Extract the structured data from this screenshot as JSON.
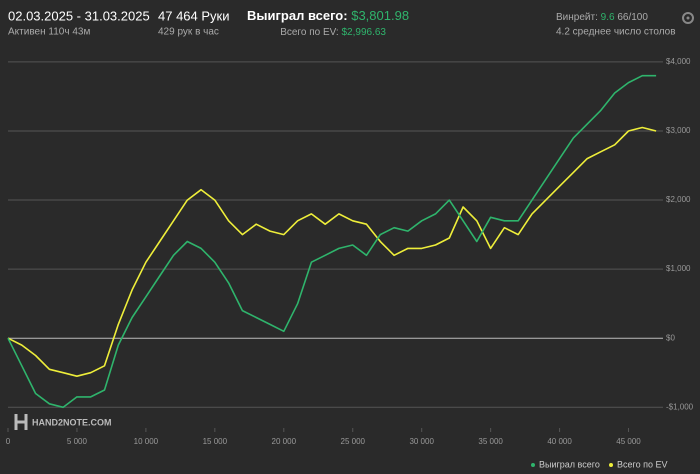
{
  "header": {
    "period": "02.03.2025 - 31.03.2025",
    "active": "Активен 110ч 43м",
    "hands": "47 464 Руки",
    "rate": "429 рук в час",
    "won_label": "Выиграл всего:",
    "won_value": "$3,801.98",
    "ev_label": "Всего по EV:",
    "ev_value": "$2,996.63",
    "winrate_label": "Винрейт:",
    "winrate_value": "9.6",
    "winrate_sample": "66/100",
    "tables": "4.2 среднее число столов",
    "watermark": "HAND2NOTE.COM"
  },
  "chart_data": {
    "type": "line",
    "x": [
      0,
      1000,
      2000,
      3000,
      4000,
      5000,
      6000,
      7000,
      8000,
      9000,
      10000,
      11000,
      12000,
      13000,
      14000,
      15000,
      16000,
      17000,
      18000,
      19000,
      20000,
      21000,
      22000,
      23000,
      24000,
      25000,
      26000,
      27000,
      28000,
      29000,
      30000,
      31000,
      32000,
      33000,
      34000,
      35000,
      36000,
      37000,
      38000,
      39000,
      40000,
      41000,
      42000,
      43000,
      44000,
      45000,
      46000,
      47000
    ],
    "series": [
      {
        "name": "Выиграл всего",
        "color": "#2fb46c",
        "values": [
          0,
          -400,
          -800,
          -950,
          -1000,
          -850,
          -850,
          -750,
          -100,
          300,
          600,
          900,
          1200,
          1400,
          1300,
          1100,
          800,
          400,
          300,
          200,
          100,
          500,
          1100,
          1200,
          1300,
          1350,
          1200,
          1500,
          1600,
          1550,
          1700,
          1800,
          2000,
          1700,
          1400,
          1750,
          1700,
          1700,
          2000,
          2300,
          2600,
          2900,
          3100,
          3300,
          3550,
          3700,
          3800,
          3800
        ]
      },
      {
        "name": "Всего по EV",
        "color": "#eeee3a",
        "values": [
          0,
          -100,
          -250,
          -450,
          -500,
          -550,
          -500,
          -400,
          200,
          700,
          1100,
          1400,
          1700,
          2000,
          2150,
          2000,
          1700,
          1500,
          1650,
          1550,
          1500,
          1700,
          1800,
          1650,
          1800,
          1700,
          1650,
          1400,
          1200,
          1300,
          1300,
          1350,
          1450,
          1900,
          1700,
          1300,
          1600,
          1500,
          1800,
          2000,
          2200,
          2400,
          2600,
          2700,
          2800,
          3000,
          3050,
          3000
        ]
      }
    ],
    "xlim": [
      0,
      47500
    ],
    "ylim": [
      -1300,
      4100
    ],
    "xticks": [
      0,
      {
        "value": 5000,
        "label": "5 000"
      },
      {
        "value": 10000,
        "label": "10 000"
      },
      {
        "value": 15000,
        "label": "15 000"
      },
      {
        "value": 20000,
        "label": "20 000"
      },
      {
        "value": 25000,
        "label": "25 000"
      },
      {
        "value": 30000,
        "label": "30 000"
      },
      {
        "value": 35000,
        "label": "35 000"
      },
      {
        "value": 40000,
        "label": "40 000"
      },
      {
        "value": 45000,
        "label": "45 000"
      }
    ],
    "yticks": [
      {
        "value": -1000,
        "label": "-$1,000"
      },
      {
        "value": 0,
        "label": "$0"
      },
      {
        "value": 1000,
        "label": "$1,000"
      },
      {
        "value": 2000,
        "label": "$2,000"
      },
      {
        "value": 3000,
        "label": "$3,000"
      },
      {
        "value": 4000,
        "label": "$4,000"
      }
    ],
    "grid": true
  }
}
